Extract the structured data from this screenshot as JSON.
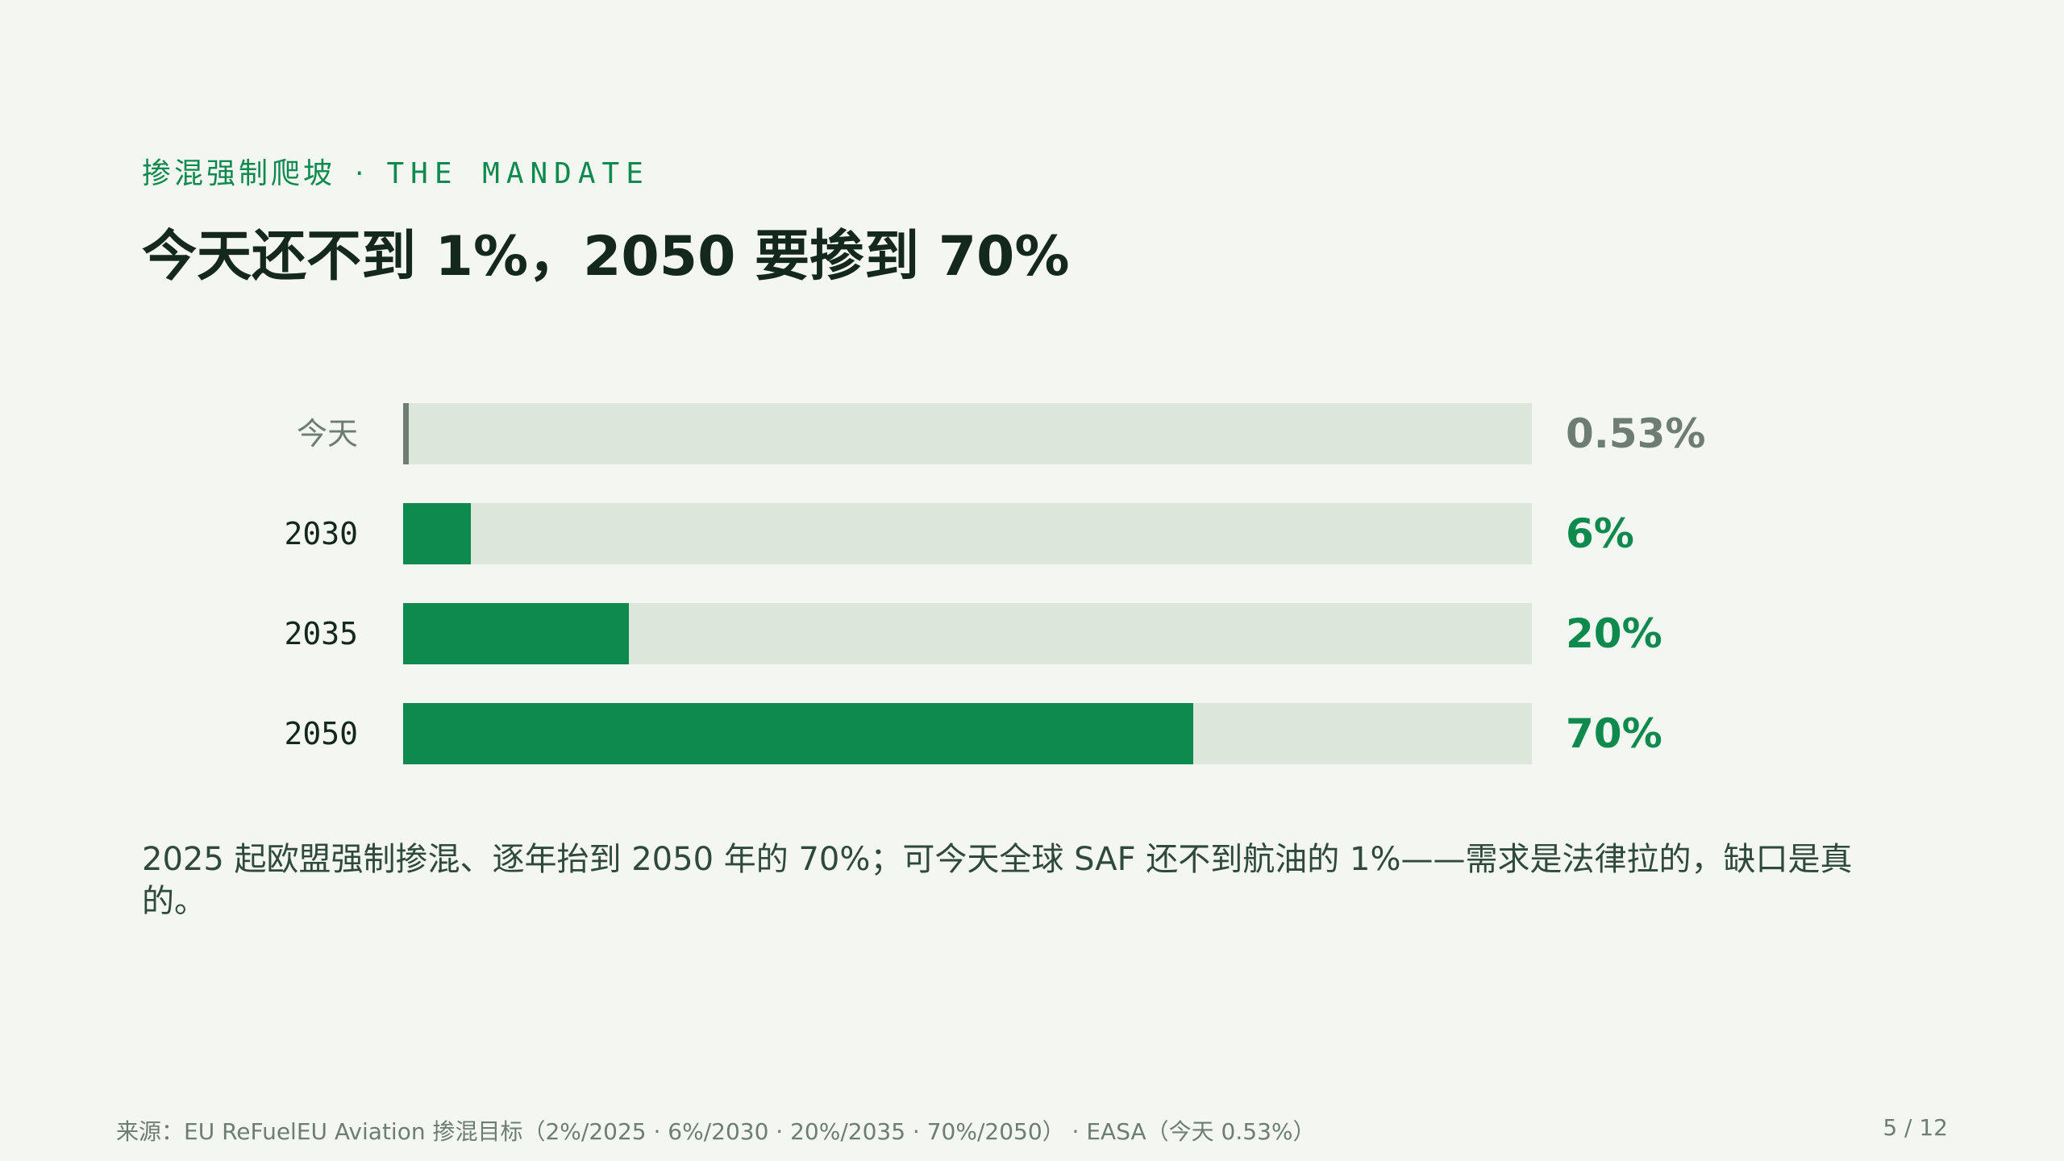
{
  "header": {
    "eyebrow_cn": "掺混强制爬坡",
    "eyebrow_sep": "·",
    "eyebrow_en": "THE MANDATE",
    "title": "今天还不到 1%，2050 要掺到 70%"
  },
  "chart_data": {
    "type": "bar",
    "orientation": "horizontal",
    "categories": [
      "今天",
      "2030",
      "2035",
      "2050"
    ],
    "values": [
      0.53,
      6,
      20,
      70
    ],
    "value_labels": [
      "0.53%",
      "6%",
      "20%",
      "70%"
    ],
    "xlim": [
      0,
      100
    ],
    "unit": "%",
    "colors": {
      "today": "#6e7d74",
      "mandate": "#0f8a4f",
      "track": "#dce7d9"
    }
  },
  "body": {
    "text": "2025 起欧盟强制掺混、逐年抬到 2050 年的 70%；可今天全球 SAF 还不到航油的 1%——需求是法律拉的，缺口是真的。"
  },
  "footer": {
    "source": "来源：EU ReFuelEU Aviation 掺混目标（2%/2025 · 6%/2030 · 20%/2035 · 70%/2050） · EASA（今天 0.53%）",
    "page": "5 / 12"
  }
}
